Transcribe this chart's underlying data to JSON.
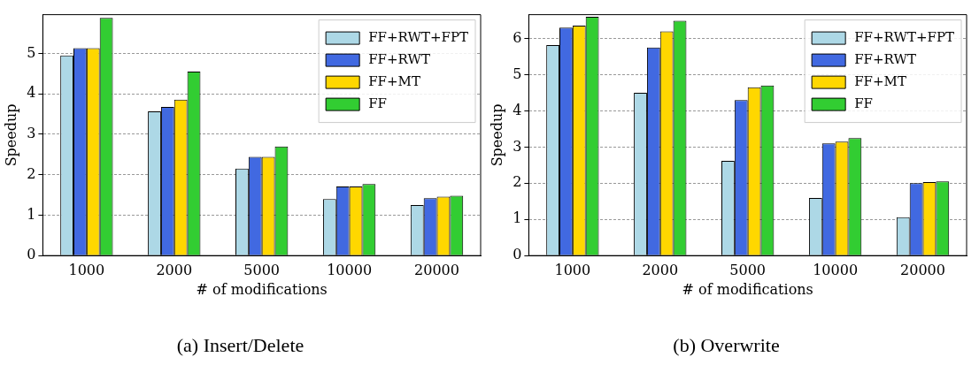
{
  "chart_data": [
    {
      "type": "bar",
      "title": "(a) Insert/Delete",
      "xlabel": "# of modifications",
      "ylabel": "Speedup",
      "categories": [
        "1000",
        "2000",
        "5000",
        "10000",
        "20000"
      ],
      "series": [
        {
          "name": "FF+RWT+FPT",
          "color": "#add8e6",
          "values": [
            4.95,
            3.57,
            2.15,
            1.4,
            1.25
          ]
        },
        {
          "name": "FF+RWT",
          "color": "#4169e1",
          "values": [
            5.13,
            3.68,
            2.44,
            1.71,
            1.42
          ]
        },
        {
          "name": "FF+MT",
          "color": "#ffd700",
          "values": [
            5.13,
            3.86,
            2.44,
            1.71,
            1.46
          ]
        },
        {
          "name": "FF",
          "color": "#32cd32",
          "values": [
            5.88,
            4.55,
            2.7,
            1.77,
            1.48
          ]
        }
      ],
      "ylim": [
        0,
        5.96
      ],
      "yticks": [
        0,
        1,
        2,
        3,
        4,
        5
      ],
      "grid": "y",
      "legend": "top right"
    },
    {
      "type": "bar",
      "title": "(b) Overwrite",
      "xlabel": "# of modifications",
      "ylabel": "Speedup",
      "categories": [
        "1000",
        "2000",
        "5000",
        "10000",
        "20000"
      ],
      "series": [
        {
          "name": "FF+RWT+FPT",
          "color": "#add8e6",
          "values": [
            5.82,
            4.5,
            2.62,
            1.59,
            1.06
          ]
        },
        {
          "name": "FF+RWT",
          "color": "#4169e1",
          "values": [
            6.3,
            5.75,
            4.3,
            3.1,
            2.0
          ]
        },
        {
          "name": "FF+MT",
          "color": "#ffd700",
          "values": [
            6.36,
            6.2,
            4.65,
            3.15,
            2.03
          ]
        },
        {
          "name": "FF",
          "color": "#32cd32",
          "values": [
            6.6,
            6.49,
            4.7,
            3.25,
            2.05
          ]
        }
      ],
      "ylim": [
        0,
        6.66
      ],
      "yticks": [
        0,
        1,
        2,
        3,
        4,
        5,
        6
      ],
      "grid": "y",
      "legend": "top right"
    }
  ]
}
